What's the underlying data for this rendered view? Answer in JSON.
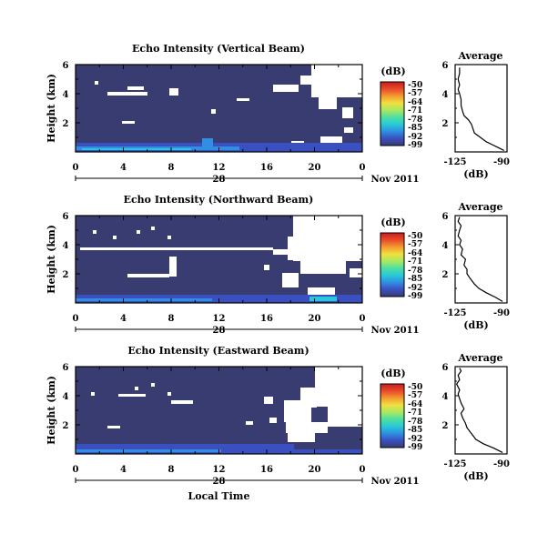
{
  "figure": {
    "xlabel": "Local Time",
    "date_label": "Nov 2011",
    "colorbar_unit": "(dB)",
    "avg_title": "Average",
    "avg_xlabel": "(dB)",
    "colors": {
      "background": "#383c70",
      "no_data": "#ffffff",
      "colormap": [
        "#383c70",
        "#3a4fc0",
        "#2f8fe0",
        "#27c9d8",
        "#4ee0a0",
        "#a8e860",
        "#f0e040",
        "#f49a30",
        "#e84a2a",
        "#c81e1e"
      ]
    }
  },
  "chart_data": [
    {
      "type": "heatmap",
      "title": "Echo Intensity (Vertical Beam)",
      "ylabel": "Height (km)",
      "x_ticks": [
        "0",
        "4",
        "8",
        "12",
        "16",
        "20",
        "0"
      ],
      "x_center_tick": "28",
      "y_ticks": [
        "6",
        "4",
        "2"
      ],
      "xlim": [
        0,
        24
      ],
      "ylim": [
        0,
        6
      ],
      "colorbar_ticks": [
        "-50",
        "-57",
        "-64",
        "-71",
        "-78",
        "-85",
        "-92",
        "-99"
      ],
      "clim": [
        -99,
        -50
      ],
      "average_profile": {
        "xlim": [
          -125,
          -90
        ],
        "x_ticks": [
          "-125",
          "-90"
        ],
        "y_ticks": [
          "6",
          "4",
          "2"
        ],
        "ylim": [
          0,
          6
        ],
        "height_km": [
          0.1,
          0.3,
          0.5,
          0.7,
          1.0,
          1.3,
          1.6,
          1.9,
          2.2,
          2.5,
          2.8,
          3.2,
          3.6,
          4.0,
          4.3,
          4.6,
          5.0,
          5.4,
          5.8
        ],
        "intensity_db": [
          -92,
          -96,
          -100,
          -104,
          -108,
          -112,
          -113,
          -114,
          -116,
          -119,
          -120,
          -121,
          -121,
          -122,
          -123,
          -122,
          -123,
          -122,
          -122
        ]
      }
    },
    {
      "type": "heatmap",
      "title": "Echo Intensity (Northward Beam)",
      "ylabel": "Height (km)",
      "x_ticks": [
        "0",
        "4",
        "8",
        "12",
        "16",
        "20",
        "0"
      ],
      "x_center_tick": "28",
      "y_ticks": [
        "6",
        "4",
        "2"
      ],
      "xlim": [
        0,
        24
      ],
      "ylim": [
        0,
        6
      ],
      "colorbar_ticks": [
        "-50",
        "-57",
        "-64",
        "-71",
        "-78",
        "-85",
        "-92",
        "-99"
      ],
      "clim": [
        -99,
        -50
      ],
      "average_profile": {
        "xlim": [
          -125,
          -90
        ],
        "x_ticks": [
          "-125",
          "-90"
        ],
        "y_ticks": [
          "6",
          "4",
          "2"
        ],
        "ylim": [
          0,
          6
        ],
        "height_km": [
          0.1,
          0.4,
          0.7,
          1.0,
          1.3,
          1.7,
          2.0,
          2.3,
          2.6,
          3.0,
          3.3,
          3.7,
          4.0,
          4.3,
          4.6,
          5.0,
          5.3,
          5.6,
          5.9
        ],
        "intensity_db": [
          -93,
          -98,
          -104,
          -109,
          -112,
          -115,
          -117,
          -117,
          -119,
          -118,
          -121,
          -120,
          -122,
          -121,
          -123,
          -122,
          -121,
          -123,
          -122
        ]
      }
    },
    {
      "type": "heatmap",
      "title": "Echo Intensity (Eastward Beam)",
      "ylabel": "Height (km)",
      "x_ticks": [
        "0",
        "4",
        "8",
        "12",
        "16",
        "20",
        "0"
      ],
      "x_center_tick": "28",
      "y_ticks": [
        "6",
        "4",
        "2"
      ],
      "xlim": [
        0,
        24
      ],
      "ylim": [
        0,
        6
      ],
      "colorbar_ticks": [
        "-50",
        "-57",
        "-64",
        "-71",
        "-78",
        "-85",
        "-92",
        "-99"
      ],
      "clim": [
        -99,
        -50
      ],
      "average_profile": {
        "xlim": [
          -125,
          -90
        ],
        "x_ticks": [
          "-125",
          "-90"
        ],
        "y_ticks": [
          "6",
          "4",
          "2"
        ],
        "ylim": [
          0,
          6
        ],
        "height_km": [
          0.1,
          0.4,
          0.7,
          1.0,
          1.4,
          1.8,
          2.1,
          2.5,
          2.8,
          3.1,
          3.5,
          3.8,
          4.1,
          4.4,
          4.8,
          5.1,
          5.4,
          5.7,
          5.9
        ],
        "intensity_db": [
          -93,
          -99,
          -106,
          -111,
          -114,
          -117,
          -118,
          -120,
          -121,
          -119,
          -121,
          -122,
          -123,
          -122,
          -124,
          -122,
          -123,
          -121,
          -122
        ]
      }
    }
  ]
}
